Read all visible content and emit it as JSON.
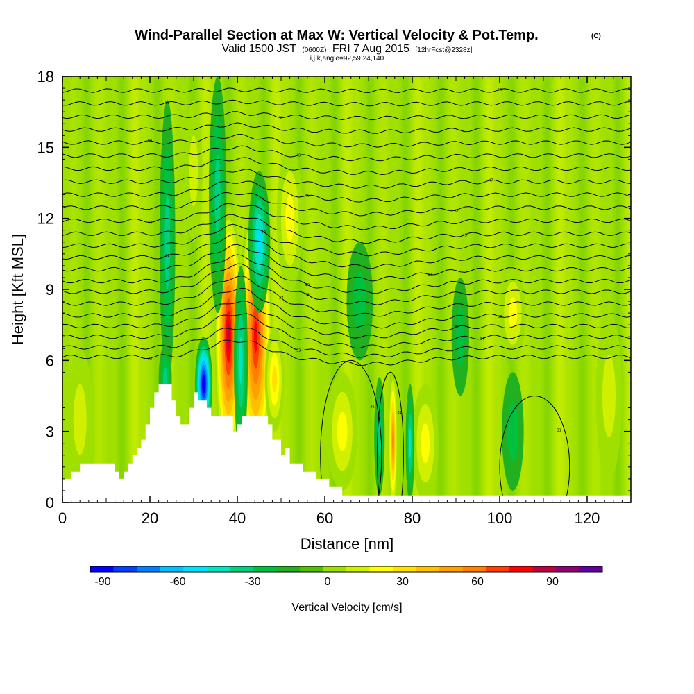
{
  "header": {
    "title_main": "Wind-Parallel Section at Max W: Vertical Velocity & Pot.Temp.",
    "title_copyright": "(C)",
    "sub_valid": "Valid 1500 JST",
    "sub_utc": "(0600Z)",
    "sub_date": "FRI 7 Aug 2015",
    "sub_fcst": "[12hrFcst@2328z]",
    "sub_indices": "i,j,k,angle=92,59,24,140"
  },
  "chart_data": {
    "type": "heatmap",
    "xlabel": "Distance [nm]",
    "ylabel": "Height [Kft MSL]",
    "xlim": [
      0,
      130
    ],
    "ylim": [
      0,
      18
    ],
    "x_ticks": [
      "0",
      "20",
      "40",
      "60",
      "80",
      "100",
      "120"
    ],
    "y_ticks": [
      "0",
      "3",
      "6",
      "9",
      "12",
      "15",
      "18"
    ],
    "colorbar": {
      "label": "Vertical Velocity [cm/s]",
      "min": -95,
      "max": 110,
      "step": 10,
      "tick_labels": [
        "-90",
        "-60",
        "-30",
        "0",
        "30",
        "60",
        "90"
      ],
      "colors": [
        "#0000ff",
        "#0040ff",
        "#0080ff",
        "#00c0ff",
        "#00e0ff",
        "#00e6c0",
        "#00d080",
        "#00c040",
        "#20b020",
        "#50c000",
        "#a0e000",
        "#d0f000",
        "#ffff00",
        "#ffe000",
        "#ffc000",
        "#ffa000",
        "#ff8000",
        "#ff4000",
        "#ff0000",
        "#c00040",
        "#900070",
        "#6000a0"
      ]
    },
    "background_color": "#a0e000",
    "terrain_color": "#ffffff",
    "terrain": [
      {
        "x": 0,
        "y": 1.0
      },
      {
        "x": 2,
        "y": 1.0
      },
      {
        "x": 2,
        "y": 1.3
      },
      {
        "x": 4,
        "y": 1.3
      },
      {
        "x": 4,
        "y": 1.65
      },
      {
        "x": 12,
        "y": 1.65
      },
      {
        "x": 12,
        "y": 1.3
      },
      {
        "x": 13,
        "y": 1.3
      },
      {
        "x": 13,
        "y": 1.0
      },
      {
        "x": 14,
        "y": 1.0
      },
      {
        "x": 14,
        "y": 1.3
      },
      {
        "x": 15,
        "y": 1.3
      },
      {
        "x": 15,
        "y": 1.65
      },
      {
        "x": 16,
        "y": 1.65
      },
      {
        "x": 16,
        "y": 2.0
      },
      {
        "x": 17,
        "y": 2.0
      },
      {
        "x": 17,
        "y": 2.3
      },
      {
        "x": 18,
        "y": 2.3
      },
      {
        "x": 18,
        "y": 2.65
      },
      {
        "x": 19,
        "y": 2.65
      },
      {
        "x": 19,
        "y": 3.3
      },
      {
        "x": 20,
        "y": 3.3
      },
      {
        "x": 20,
        "y": 4.0
      },
      {
        "x": 21,
        "y": 4.0
      },
      {
        "x": 21,
        "y": 4.65
      },
      {
        "x": 22,
        "y": 4.65
      },
      {
        "x": 22,
        "y": 5.0
      },
      {
        "x": 25,
        "y": 5.0
      },
      {
        "x": 25,
        "y": 4.3
      },
      {
        "x": 26,
        "y": 4.3
      },
      {
        "x": 26,
        "y": 3.65
      },
      {
        "x": 27,
        "y": 3.65
      },
      {
        "x": 27,
        "y": 3.3
      },
      {
        "x": 29,
        "y": 3.3
      },
      {
        "x": 29,
        "y": 4.0
      },
      {
        "x": 30,
        "y": 4.0
      },
      {
        "x": 30,
        "y": 4.65
      },
      {
        "x": 31,
        "y": 4.65
      },
      {
        "x": 31,
        "y": 4.3
      },
      {
        "x": 33,
        "y": 4.3
      },
      {
        "x": 33,
        "y": 4.0
      },
      {
        "x": 34,
        "y": 4.0
      },
      {
        "x": 34,
        "y": 3.65
      },
      {
        "x": 39,
        "y": 3.65
      },
      {
        "x": 39,
        "y": 3.0
      },
      {
        "x": 40,
        "y": 3.0
      },
      {
        "x": 40,
        "y": 3.3
      },
      {
        "x": 41,
        "y": 3.3
      },
      {
        "x": 41,
        "y": 3.65
      },
      {
        "x": 47,
        "y": 3.65
      },
      {
        "x": 47,
        "y": 3.3
      },
      {
        "x": 48,
        "y": 3.3
      },
      {
        "x": 48,
        "y": 2.65
      },
      {
        "x": 50,
        "y": 2.65
      },
      {
        "x": 50,
        "y": 2.0
      },
      {
        "x": 51,
        "y": 2.0
      },
      {
        "x": 51,
        "y": 2.3
      },
      {
        "x": 52,
        "y": 2.3
      },
      {
        "x": 52,
        "y": 1.65
      },
      {
        "x": 55,
        "y": 1.65
      },
      {
        "x": 55,
        "y": 1.3
      },
      {
        "x": 58,
        "y": 1.3
      },
      {
        "x": 58,
        "y": 1.0
      },
      {
        "x": 61,
        "y": 1.0
      },
      {
        "x": 61,
        "y": 0.65
      },
      {
        "x": 64,
        "y": 0.65
      },
      {
        "x": 64,
        "y": 0.3
      },
      {
        "x": 130,
        "y": 0.3
      },
      {
        "x": 130,
        "y": 0
      }
    ],
    "updrafts": [
      {
        "x": 38.0,
        "y": 7.0,
        "w": 92,
        "rx": 3.2,
        "ry": 5.5
      },
      {
        "x": 44.2,
        "y": 7.0,
        "w": 85,
        "rx": 3.8,
        "ry": 6.0
      },
      {
        "x": 48.5,
        "y": 5.2,
        "w": 40,
        "rx": 2.2,
        "ry": 2.2
      },
      {
        "x": 52.0,
        "y": 12.0,
        "w": 30,
        "rx": 3.0,
        "ry": 3.0
      },
      {
        "x": 64.0,
        "y": 3.0,
        "w": 28,
        "rx": 3.5,
        "ry": 2.5
      },
      {
        "x": 75.6,
        "y": 2.6,
        "w": 62,
        "rx": 1.0,
        "ry": 3.0
      },
      {
        "x": 83.0,
        "y": 2.5,
        "w": 22,
        "rx": 3.0,
        "ry": 2.5
      },
      {
        "x": 103.0,
        "y": 8.0,
        "w": 22,
        "rx": 3.0,
        "ry": 2.0
      },
      {
        "x": 125.0,
        "y": 4.5,
        "w": 20,
        "rx": 3.0,
        "ry": 3.5
      },
      {
        "x": 4.0,
        "y": 3.5,
        "w": 18,
        "rx": 3.0,
        "ry": 3.0
      },
      {
        "x": 30.0,
        "y": 14.0,
        "w": 18,
        "rx": 2.0,
        "ry": 3.0
      }
    ],
    "downdrafts": [
      {
        "x": 32.3,
        "y": 5.0,
        "w": -92,
        "rx": 2.0,
        "ry": 2.0
      },
      {
        "x": 40.8,
        "y": 6.0,
        "w": -32,
        "rx": 1.6,
        "ry": 4.0
      },
      {
        "x": 45.0,
        "y": 11.0,
        "w": -45,
        "rx": 2.5,
        "ry": 3.0
      },
      {
        "x": 24.0,
        "y": 11.0,
        "w": -25,
        "rx": 1.8,
        "ry": 6.0
      },
      {
        "x": 35.5,
        "y": 13.0,
        "w": -22,
        "rx": 2.0,
        "ry": 5.0
      },
      {
        "x": 23.5,
        "y": 5.2,
        "w": -30,
        "rx": 1.5,
        "ry": 1.5
      },
      {
        "x": 72.5,
        "y": 2.8,
        "w": -30,
        "rx": 1.2,
        "ry": 2.5
      },
      {
        "x": 79.5,
        "y": 2.5,
        "w": -35,
        "rx": 1.0,
        "ry": 2.5
      },
      {
        "x": 68.0,
        "y": 8.5,
        "w": -20,
        "rx": 3.0,
        "ry": 2.5
      },
      {
        "x": 91.0,
        "y": 7.0,
        "w": -20,
        "rx": 2.0,
        "ry": 2.5
      },
      {
        "x": 103.0,
        "y": 3.0,
        "w": -20,
        "rx": 2.5,
        "ry": 2.5
      }
    ],
    "isentropes": [
      {
        "label": "32",
        "y0": 6.15,
        "k": 0.5,
        "lx": 20
      },
      {
        "label": "33",
        "y0": 6.55,
        "k": 0.6,
        "lx": 54
      },
      {
        "label": "34",
        "y0": 7.0,
        "k": 0.7,
        "lx": 96
      },
      {
        "label": "35",
        "y0": 7.45,
        "k": 0.75,
        "lx": 90
      },
      {
        "label": "36",
        "y0": 7.9,
        "k": 0.8,
        "lx": 100
      },
      {
        "label": "37",
        "y0": 8.4,
        "k": 0.8,
        "lx": 50
      },
      {
        "label": "38",
        "y0": 8.9,
        "k": 0.8,
        "lx": 56
      },
      {
        "label": "39",
        "y0": 9.35,
        "k": 0.75,
        "lx": 56
      },
      {
        "label": "40",
        "y0": 9.85,
        "k": 0.7,
        "lx": 84
      },
      {
        "label": "41",
        "y0": 10.35,
        "k": 0.65,
        "lx": 24
      },
      {
        "label": "42",
        "y0": 10.85,
        "k": 0.6,
        "lx": 46
      },
      {
        "label": "43",
        "y0": 11.35,
        "k": 0.55,
        "lx": 92
      },
      {
        "label": "44",
        "y0": 11.9,
        "k": 0.5,
        "lx": 20
      },
      {
        "label": "45",
        "y0": 12.45,
        "k": 0.45,
        "lx": 90
      },
      {
        "label": "46",
        "y0": 13.0,
        "k": 0.4,
        "lx": 56
      },
      {
        "label": "47",
        "y0": 13.55,
        "k": 0.35,
        "lx": 98
      },
      {
        "label": "48",
        "y0": 14.1,
        "k": 0.3,
        "lx": 25
      },
      {
        "label": "49",
        "y0": 14.65,
        "k": 0.25,
        "lx": 54
      },
      {
        "label": "50",
        "y0": 15.2,
        "k": 0.2,
        "lx": 20
      },
      {
        "label": "51",
        "y0": 15.75,
        "k": 0.15,
        "lx": 92
      },
      {
        "label": "52",
        "y0": 16.3,
        "k": 0.1,
        "lx": 50
      },
      {
        "label": "53",
        "y0": 16.85,
        "k": 0.05,
        "lx": 24
      },
      {
        "label": "54",
        "y0": 17.4,
        "k": 0.02,
        "lx": 100
      }
    ],
    "low_contours": [
      {
        "label": "31",
        "x": 66.0,
        "y": 2.0,
        "rx": 7.0,
        "ry": 4.0
      },
      {
        "label": "31",
        "x": 75.0,
        "y": 2.0,
        "rx": 3.0,
        "ry": 3.5
      },
      {
        "label": "31",
        "x": 108.0,
        "y": 1.5,
        "rx": 8.0,
        "ry": 3.0
      }
    ]
  }
}
